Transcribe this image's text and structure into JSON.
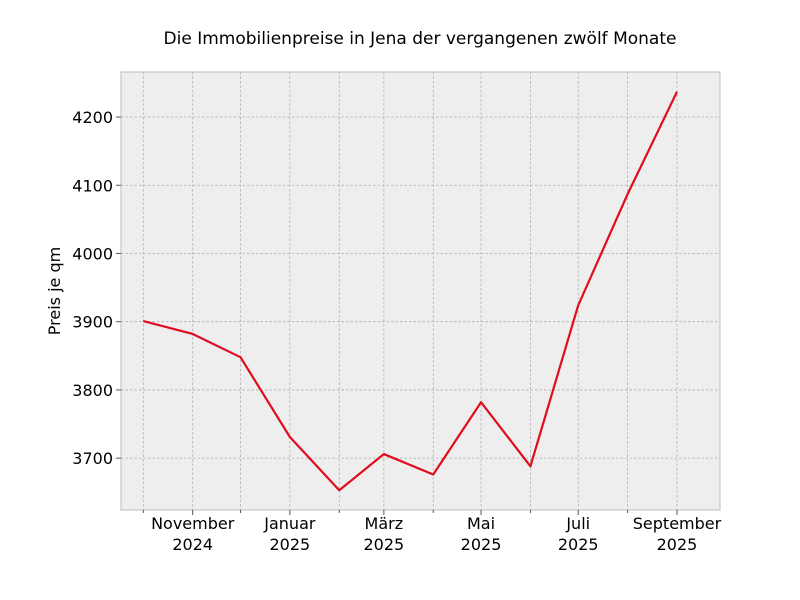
{
  "chart_data": {
    "type": "line",
    "title": "Die Immobilienpreise in Jena der vergangenen zwölf Monate",
    "xlabel": "",
    "ylabel": "Preis je qm",
    "x": [
      "2024-10-01",
      "2024-11-01",
      "2024-12-01",
      "2025-01-01",
      "2025-02-01",
      "2025-03-01",
      "2025-04-01",
      "2025-05-01",
      "2025-06-01",
      "2025-07-01",
      "2025-08-01",
      "2025-09-01"
    ],
    "series": [
      {
        "name": "",
        "color": "#e00d1e",
        "values": [
          3901,
          3882,
          3848,
          3731,
          3653,
          3706,
          3676,
          3782,
          3688,
          3924,
          4087,
          4237
        ]
      }
    ],
    "xticks_major": [
      {
        "x": "2024-11-01",
        "line1": "November",
        "line2": "2024"
      },
      {
        "x": "2025-01-01",
        "line1": "Januar",
        "line2": "2025"
      },
      {
        "x": "2025-03-01",
        "line1": "März",
        "line2": "2025"
      },
      {
        "x": "2025-05-01",
        "line1": "Mai",
        "line2": "2025"
      },
      {
        "x": "2025-07-01",
        "line1": "Juli",
        "line2": "2025"
      },
      {
        "x": "2025-09-01",
        "line1": "September",
        "line2": "2025"
      }
    ],
    "xticks_minor": [
      "2024-10-01",
      "2024-12-01",
      "2025-02-01",
      "2025-04-01",
      "2025-06-01",
      "2025-08-01"
    ],
    "yticks": [
      3700,
      3800,
      3900,
      4000,
      4100,
      4200
    ],
    "xlim": [
      "2024-09-17",
      "2025-09-28"
    ],
    "ylim": [
      3624,
      4266
    ],
    "grid": true,
    "legend": "none",
    "background": "#eeeeee"
  }
}
